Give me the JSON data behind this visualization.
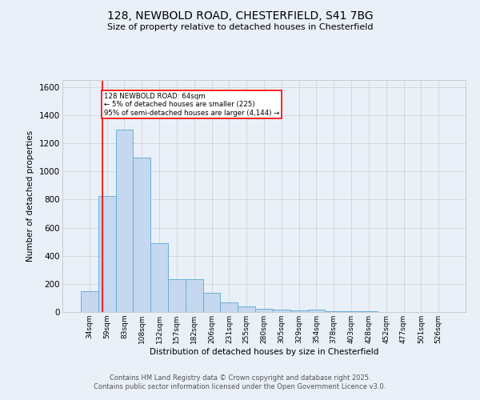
{
  "title_line1": "128, NEWBOLD ROAD, CHESTERFIELD, S41 7BG",
  "title_line2": "Size of property relative to detached houses in Chesterfield",
  "xlabel": "Distribution of detached houses by size in Chesterfield",
  "ylabel": "Number of detached properties",
  "footer_line1": "Contains HM Land Registry data © Crown copyright and database right 2025.",
  "footer_line2": "Contains public sector information licensed under the Open Government Licence v3.0.",
  "bar_labels": [
    "34sqm",
    "59sqm",
    "83sqm",
    "108sqm",
    "132sqm",
    "157sqm",
    "182sqm",
    "206sqm",
    "231sqm",
    "255sqm",
    "280sqm",
    "305sqm",
    "329sqm",
    "354sqm",
    "378sqm",
    "403sqm",
    "428sqm",
    "452sqm",
    "477sqm",
    "501sqm",
    "526sqm"
  ],
  "bar_values": [
    150,
    825,
    1300,
    1100,
    490,
    235,
    235,
    135,
    70,
    42,
    25,
    15,
    10,
    18,
    5,
    5,
    5,
    0,
    0,
    0,
    0
  ],
  "bar_color": "#c5d8ef",
  "bar_edge_color": "#6aaed6",
  "annotation_text": "128 NEWBOLD ROAD: 64sqm\n← 5% of detached houses are smaller (225)\n95% of semi-detached houses are larger (4,144) →",
  "annotation_box_color": "white",
  "annotation_box_edge_color": "red",
  "vline_x": 0.72,
  "vline_color": "red",
  "ylim": [
    0,
    1650
  ],
  "yticks": [
    0,
    200,
    400,
    600,
    800,
    1000,
    1200,
    1400,
    1600
  ],
  "grid_color": "#cccccc",
  "bg_color": "#eaf0f8",
  "plot_bg_color": "#eaf0f8",
  "fig_width": 6.0,
  "fig_height": 5.0,
  "dpi": 100
}
